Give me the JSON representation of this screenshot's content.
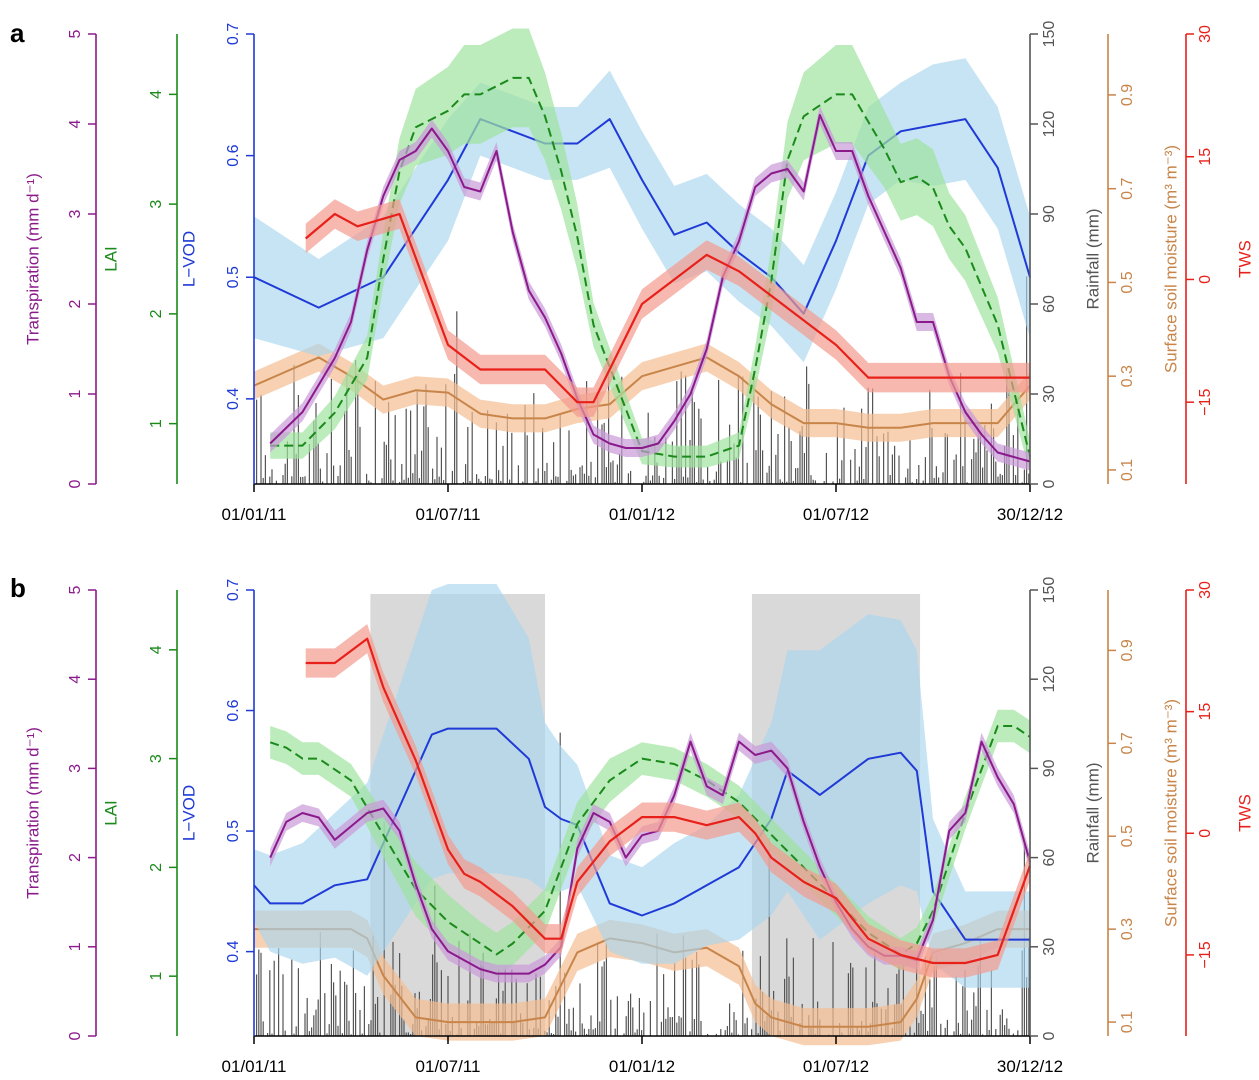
{
  "colors": {
    "transpiration": "#8b1a8b",
    "lai": "#1a8a1a",
    "lvod": "#1f3ad6",
    "rainfall": "#555555",
    "soil_moisture": "#c8854a",
    "tws": "#e8201a",
    "lai_band": "#9fe39f",
    "lvod_band": "#a9d5ee",
    "transp_band": "#c99ad9",
    "soil_band": "#f4bd91",
    "tws_band": "#f49a8f",
    "dry_season": "#d9d9d9"
  },
  "chart_data": [
    {
      "panel": "a",
      "type": "line",
      "x_ticks": [
        "01/01/11",
        "01/07/11",
        "01/01/12",
        "01/07/12",
        "30/12/12"
      ],
      "axes": {
        "transpiration": {
          "label": "Transpiration (mm d⁻¹)",
          "range": [
            0,
            5
          ],
          "ticks": [
            "0",
            "1",
            "2",
            "3",
            "4",
            "5"
          ]
        },
        "lai": {
          "label": "LAI",
          "range": [
            0.45,
            4.55
          ],
          "ticks": [
            "1",
            "2",
            "3",
            "4"
          ]
        },
        "lvod": {
          "label": "L−VOD",
          "range": [
            0.33,
            0.7
          ],
          "ticks": [
            "0.4",
            "0.5",
            "0.6",
            "0.7"
          ]
        },
        "rainfall": {
          "label": "Rainfall (mm)",
          "range": [
            0,
            150
          ],
          "ticks": [
            "0",
            "30",
            "60",
            "90",
            "120",
            "150"
          ]
        },
        "soil_moisture": {
          "label": "Surface soil moisture (m³ m⁻³)",
          "range": [
            0.07,
            1.03
          ],
          "ticks": [
            "0.1",
            "0.3",
            "0.5",
            "0.7",
            "0.9"
          ]
        },
        "tws": {
          "label": "TWS",
          "range": [
            -25,
            30
          ],
          "ticks": [
            "−15",
            "0",
            "15",
            "30"
          ]
        }
      },
      "dry_season_months": [],
      "series": [
        {
          "key": "lvod",
          "x": [
            0,
            2,
            4,
            6,
            7,
            8,
            9,
            10,
            11,
            12,
            13,
            14,
            15,
            16,
            17,
            18,
            19,
            20,
            21,
            22,
            23,
            24
          ],
          "y": [
            0.5,
            0.475,
            0.5,
            0.58,
            0.63,
            0.62,
            0.61,
            0.61,
            0.63,
            0.58,
            0.535,
            0.545,
            0.52,
            0.5,
            0.47,
            0.53,
            0.6,
            0.62,
            0.625,
            0.63,
            0.59,
            0.5
          ],
          "band": [
            0.05,
            0.04,
            0.05,
            0.05,
            0.03,
            0.03,
            0.03,
            0.03,
            0.04,
            0.04,
            0.04,
            0.04,
            0.04,
            0.04,
            0.04,
            0.04,
            0.04,
            0.04,
            0.05,
            0.05,
            0.05,
            0.05
          ]
        },
        {
          "key": "lai",
          "x": [
            0.5,
            1.5,
            2.5,
            3.5,
            4,
            4.5,
            5,
            6,
            6.5,
            7,
            8,
            8.5,
            9,
            9.5,
            10,
            10.5,
            12,
            13,
            14,
            15,
            15.5,
            16,
            16.5,
            17,
            18,
            18.5,
            19,
            19.5,
            20,
            20.5,
            21,
            21.5,
            22,
            23,
            24
          ],
          "y": [
            0.8,
            0.8,
            1.1,
            1.6,
            2.5,
            3.3,
            3.7,
            3.85,
            4,
            4,
            4.15,
            4.15,
            3.8,
            3.3,
            2.7,
            1.9,
            0.75,
            0.7,
            0.7,
            0.8,
            1.5,
            2.3,
            3.4,
            3.8,
            4,
            4,
            3.75,
            3.5,
            3.2,
            3.25,
            3.15,
            2.8,
            2.6,
            1.9,
            0.7
          ],
          "band": [
            0.12,
            0.12,
            0.15,
            0.2,
            0.25,
            0.3,
            0.35,
            0.4,
            0.45,
            0.45,
            0.45,
            0.45,
            0.4,
            0.35,
            0.3,
            0.2,
            0.12,
            0.1,
            0.1,
            0.12,
            0.2,
            0.3,
            0.35,
            0.4,
            0.45,
            0.45,
            0.4,
            0.35,
            0.35,
            0.35,
            0.35,
            0.3,
            0.3,
            0.25,
            0.15
          ]
        },
        {
          "key": "transpiration",
          "x": [
            0.5,
            1.5,
            2.5,
            3,
            3.5,
            4,
            4.5,
            5,
            5.5,
            6,
            6.5,
            7,
            7.5,
            8,
            8.5,
            9,
            9.5,
            10,
            10.5,
            11,
            11.5,
            12,
            12.5,
            13,
            13.5,
            14,
            14.5,
            15,
            15.5,
            16,
            16.5,
            17,
            17.5,
            18,
            18.5,
            19,
            19.5,
            20,
            20.5,
            21,
            21.5,
            22,
            22.5,
            23,
            23.5,
            24
          ],
          "y": [
            0.45,
            0.8,
            1.4,
            1.8,
            2.6,
            3.2,
            3.6,
            3.7,
            3.95,
            3.7,
            3.3,
            3.25,
            3.7,
            2.8,
            2.15,
            1.85,
            1.45,
            0.95,
            0.55,
            0.45,
            0.4,
            0.4,
            0.45,
            0.7,
            1.0,
            1.5,
            2.3,
            2.7,
            3.3,
            3.45,
            3.5,
            3.25,
            4.1,
            3.7,
            3.7,
            3.2,
            2.8,
            2.4,
            1.8,
            1.8,
            1.2,
            0.8,
            0.55,
            0.35,
            0.3,
            0.25
          ],
          "band": 0.1
        },
        {
          "key": "tws",
          "x": [
            1.6,
            2.5,
            3.2,
            4.5,
            6,
            7,
            8,
            9,
            10,
            10.5,
            12,
            13,
            14,
            15,
            16,
            17,
            18,
            19,
            20,
            21,
            22,
            23,
            24
          ],
          "y": [
            5,
            8,
            6.5,
            8,
            -8,
            -11,
            -11,
            -11,
            -15,
            -15,
            -3,
            0,
            3,
            1,
            -2,
            -5,
            -8,
            -12,
            -12,
            -12,
            -12,
            -12,
            -12
          ],
          "band": 1.8
        },
        {
          "key": "soil_moisture",
          "x": [
            0,
            1,
            2,
            3,
            4,
            5,
            6,
            7,
            8,
            9,
            10,
            11,
            12,
            13,
            14,
            15,
            16,
            17,
            18,
            19,
            20,
            21,
            22,
            23,
            24
          ],
          "y": [
            0.28,
            0.31,
            0.34,
            0.3,
            0.25,
            0.27,
            0.265,
            0.22,
            0.21,
            0.21,
            0.23,
            0.24,
            0.3,
            0.32,
            0.34,
            0.3,
            0.24,
            0.2,
            0.2,
            0.19,
            0.19,
            0.2,
            0.2,
            0.2,
            0.28
          ],
          "band": 0.03
        },
        {
          "key": "rainfall",
          "type": "bar",
          "mean_mm": 8
        }
      ]
    },
    {
      "panel": "b",
      "type": "line",
      "x_ticks": [
        "01/01/11",
        "01/07/11",
        "01/01/12",
        "01/07/12",
        "30/12/12"
      ],
      "axes": {
        "transpiration": {
          "label": "Transpiration (mm d⁻¹)",
          "range": [
            0,
            5
          ],
          "ticks": [
            "0",
            "1",
            "2",
            "3",
            "4",
            "5"
          ]
        },
        "lai": {
          "label": "LAI",
          "range": [
            0.45,
            4.55
          ],
          "ticks": [
            "1",
            "2",
            "3",
            "4"
          ]
        },
        "lvod": {
          "label": "L−VOD",
          "range": [
            0.33,
            0.7
          ],
          "ticks": [
            "0.4",
            "0.5",
            "0.6",
            "0.7"
          ]
        },
        "rainfall": {
          "label": "Rainfall (mm)",
          "range": [
            0,
            150
          ],
          "ticks": [
            "0",
            "30",
            "60",
            "90",
            "120",
            "150"
          ]
        },
        "soil_moisture": {
          "label": "Surface soil moisture (m³ m⁻³)",
          "range": [
            0.07,
            1.03
          ],
          "ticks": [
            "0.1",
            "0.3",
            "0.5",
            "0.7",
            "0.9"
          ]
        },
        "tws": {
          "label": "TWS",
          "range": [
            -25,
            30
          ],
          "ticks": [
            "−15",
            "0",
            "15",
            "30"
          ]
        }
      },
      "dry_season_months": [
        [
          3.6,
          9
        ],
        [
          15.4,
          20.6
        ]
      ],
      "series": [
        {
          "key": "lvod",
          "x": [
            0,
            0.5,
            1.5,
            2.5,
            3.5,
            4.5,
            5.5,
            6,
            7,
            7.5,
            8.5,
            9,
            9.5,
            10,
            11,
            12,
            13,
            14,
            15,
            16,
            16.5,
            17.5,
            18,
            19,
            20,
            20.5,
            21,
            22,
            23,
            24
          ],
          "y": [
            0.455,
            0.44,
            0.44,
            0.455,
            0.46,
            0.52,
            0.58,
            0.585,
            0.585,
            0.585,
            0.56,
            0.52,
            0.51,
            0.505,
            0.44,
            0.43,
            0.44,
            0.455,
            0.47,
            0.51,
            0.55,
            0.53,
            0.54,
            0.56,
            0.565,
            0.55,
            0.45,
            0.41,
            0.41,
            0.41
          ],
          "band": [
            0.03,
            0.04,
            0.05,
            0.06,
            0.08,
            0.1,
            0.12,
            0.12,
            0.12,
            0.12,
            0.1,
            0.07,
            0.06,
            0.05,
            0.04,
            0.04,
            0.05,
            0.05,
            0.06,
            0.08,
            0.1,
            0.12,
            0.12,
            0.12,
            0.11,
            0.1,
            0.06,
            0.04,
            0.04,
            0.04
          ]
        },
        {
          "key": "lai",
          "x": [
            0.5,
            1,
            1.5,
            2,
            3,
            4,
            5,
            6,
            7,
            7.5,
            8,
            9,
            10,
            11,
            12,
            13,
            14,
            15,
            16,
            17,
            18,
            19,
            20,
            20.5,
            21,
            22,
            23,
            23.5,
            24
          ],
          "y": [
            3.15,
            3.1,
            3.0,
            3.0,
            2.8,
            2.3,
            1.8,
            1.5,
            1.3,
            1.2,
            1.3,
            1.6,
            2.4,
            2.8,
            3.0,
            2.95,
            2.8,
            2.6,
            2.3,
            2.0,
            1.7,
            1.4,
            1.2,
            1.3,
            1.6,
            2.5,
            3.3,
            3.3,
            3.2
          ],
          "band": [
            0.15,
            0.15,
            0.15,
            0.15,
            0.15,
            0.2,
            0.25,
            0.25,
            0.2,
            0.2,
            0.2,
            0.2,
            0.2,
            0.2,
            0.15,
            0.15,
            0.15,
            0.15,
            0.15,
            0.15,
            0.15,
            0.15,
            0.15,
            0.15,
            0.15,
            0.15,
            0.15,
            0.15,
            0.15
          ]
        },
        {
          "key": "transpiration",
          "x": [
            0.5,
            1,
            1.5,
            2,
            2.5,
            3,
            3.5,
            4,
            4.5,
            5,
            5.5,
            6,
            6.5,
            7,
            7.5,
            8,
            8.5,
            9,
            9.5,
            10,
            10.5,
            11,
            11.5,
            12,
            12.5,
            13,
            13.5,
            14,
            14.5,
            15,
            15.5,
            16,
            16.5,
            17,
            17.5,
            18,
            18.5,
            19,
            19.5,
            20,
            20.5,
            21,
            21.5,
            22,
            22.5,
            23,
            23.5,
            24
          ],
          "y": [
            2.0,
            2.4,
            2.5,
            2.45,
            2.2,
            2.35,
            2.5,
            2.55,
            2.3,
            1.7,
            1.2,
            0.95,
            0.85,
            0.75,
            0.7,
            0.7,
            0.7,
            0.8,
            1.0,
            2.1,
            2.5,
            2.4,
            2.0,
            2.25,
            2.3,
            2.7,
            3.3,
            2.8,
            2.7,
            3.3,
            3.15,
            3.2,
            3.0,
            2.4,
            1.9,
            1.5,
            1.2,
            1.0,
            0.9,
            0.9,
            0.85,
            1.3,
            2.3,
            2.5,
            3.3,
            2.9,
            2.6,
            1.95
          ],
          "band": 0.1
        },
        {
          "key": "tws",
          "x": [
            1.6,
            2.5,
            3.5,
            4,
            5,
            6,
            6.5,
            7,
            8,
            9,
            9.5,
            10,
            11,
            12,
            13,
            14,
            15,
            15.5,
            16,
            17,
            18,
            19,
            20,
            21,
            22,
            23,
            24
          ],
          "y": [
            21,
            21,
            24,
            18,
            9,
            -2,
            -5,
            -6,
            -9,
            -13,
            -13,
            -6,
            -1,
            2,
            2,
            1,
            2,
            0,
            -3,
            -6,
            -8,
            -13,
            -15,
            -16,
            -16,
            -15,
            -4
          ],
          "band": 1.8
        },
        {
          "key": "soil_moisture",
          "x": [
            0,
            1,
            2,
            3,
            3.5,
            4,
            5,
            6,
            7,
            8,
            9,
            10,
            11,
            12,
            13,
            14,
            15,
            15.5,
            16,
            17,
            18,
            19,
            20,
            20.5,
            21,
            22,
            23,
            24
          ],
          "y": [
            0.3,
            0.3,
            0.3,
            0.3,
            0.28,
            0.2,
            0.11,
            0.1,
            0.1,
            0.1,
            0.11,
            0.25,
            0.28,
            0.27,
            0.25,
            0.26,
            0.22,
            0.14,
            0.11,
            0.09,
            0.09,
            0.09,
            0.1,
            0.15,
            0.25,
            0.27,
            0.3,
            0.3
          ],
          "band": 0.04
        },
        {
          "key": "rainfall",
          "type": "bar",
          "mean_mm": 7
        }
      ]
    }
  ],
  "panels": [
    {
      "letter": "a"
    },
    {
      "letter": "b"
    }
  ]
}
